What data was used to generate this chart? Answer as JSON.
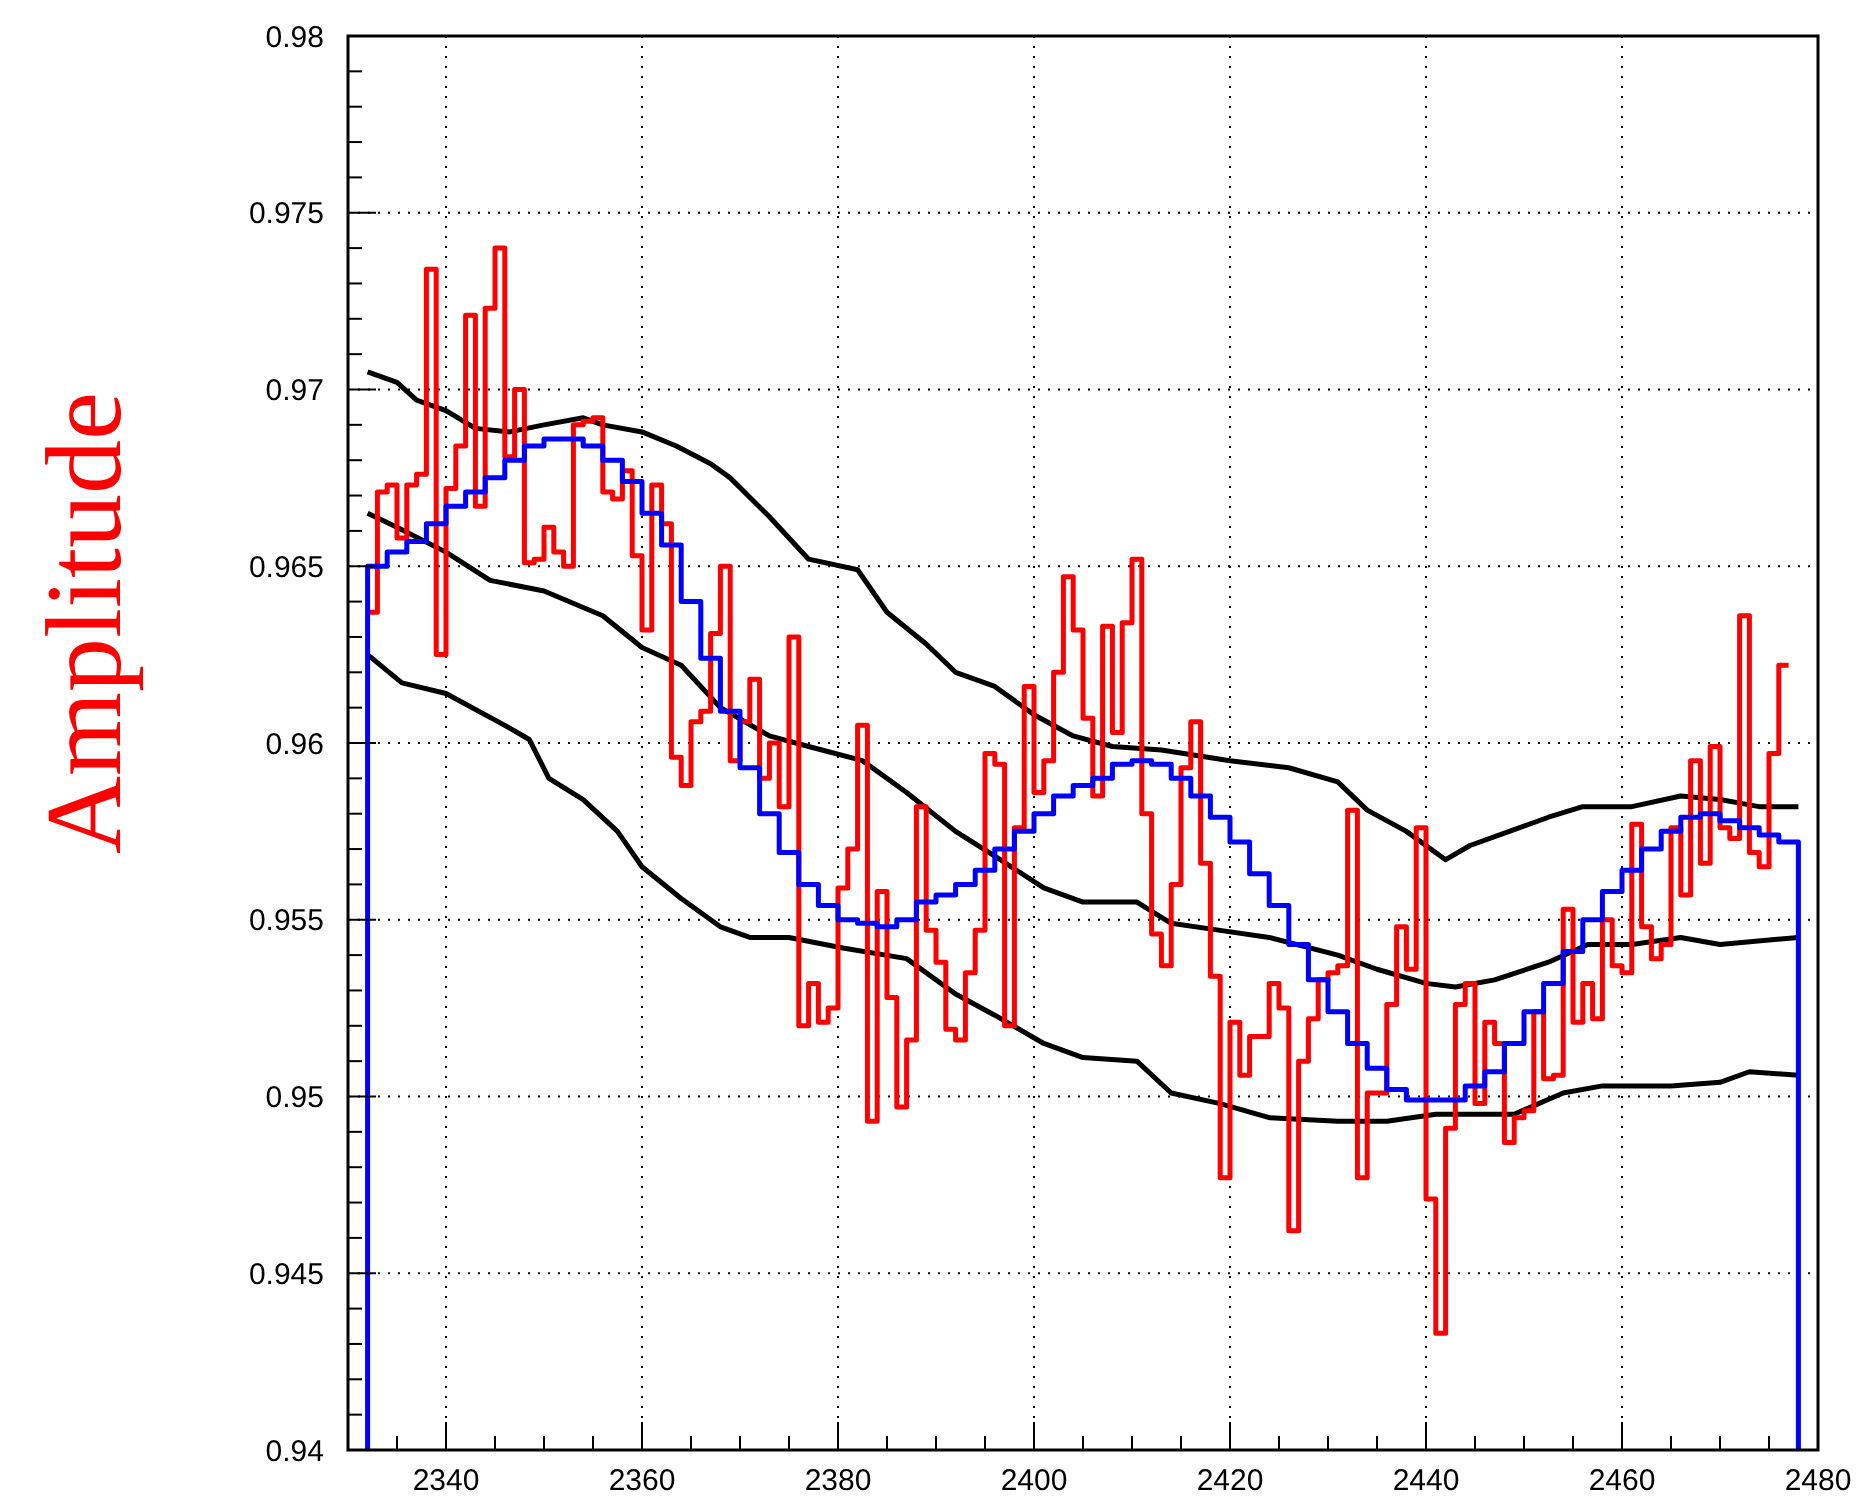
{
  "chart_data": {
    "type": "step",
    "ylabel": "Amplitude",
    "xlim": [
      2330,
      2480
    ],
    "ylim": [
      0.94,
      0.98
    ],
    "xticks": [
      {
        "value": 2335,
        "label": null
      },
      2340,
      {
        "value": 2345,
        "label": null
      },
      {
        "value": 2350,
        "label": null
      },
      {
        "value": 2355,
        "label": null
      },
      2360,
      {
        "value": 2365,
        "label": null
      },
      {
        "value": 2370,
        "label": null
      },
      {
        "value": 2375,
        "label": null
      },
      2380,
      {
        "value": 2385,
        "label": null
      },
      {
        "value": 2390,
        "label": null
      },
      {
        "value": 2395,
        "label": null
      },
      2400,
      {
        "value": 2405,
        "label": null
      },
      {
        "value": 2410,
        "label": null
      },
      {
        "value": 2415,
        "label": null
      },
      2420,
      {
        "value": 2425,
        "label": null
      },
      {
        "value": 2430,
        "label": null
      },
      {
        "value": 2435,
        "label": null
      },
      2440,
      {
        "value": 2445,
        "label": null
      },
      {
        "value": 2450,
        "label": null
      },
      {
        "value": 2455,
        "label": null
      },
      2460,
      {
        "value": 2465,
        "label": null
      },
      {
        "value": 2470,
        "label": null
      },
      {
        "value": 2475,
        "label": null
      },
      2480
    ],
    "yticks": [
      0.94,
      {
        "value": 0.941,
        "label": null
      },
      {
        "value": 0.942,
        "label": null
      },
      {
        "value": 0.943,
        "label": null
      },
      {
        "value": 0.944,
        "label": null
      },
      0.945,
      {
        "value": 0.946,
        "label": null
      },
      {
        "value": 0.947,
        "label": null
      },
      {
        "value": 0.948,
        "label": null
      },
      {
        "value": 0.949,
        "label": null
      },
      0.95,
      {
        "value": 0.951,
        "label": null
      },
      {
        "value": 0.952,
        "label": null
      },
      {
        "value": 0.953,
        "label": null
      },
      {
        "value": 0.954,
        "label": null
      },
      0.955,
      {
        "value": 0.956,
        "label": null
      },
      {
        "value": 0.957,
        "label": null
      },
      {
        "value": 0.958,
        "label": null
      },
      {
        "value": 0.959,
        "label": null
      },
      0.96,
      {
        "value": 0.961,
        "label": null
      },
      {
        "value": 0.962,
        "label": null
      },
      {
        "value": 0.963,
        "label": null
      },
      {
        "value": 0.964,
        "label": null
      },
      0.965,
      {
        "value": 0.966,
        "label": null
      },
      {
        "value": 0.967,
        "label": null
      },
      {
        "value": 0.968,
        "label": null
      },
      {
        "value": 0.969,
        "label": null
      },
      0.97,
      {
        "value": 0.971,
        "label": null
      },
      {
        "value": 0.972,
        "label": null
      },
      {
        "value": 0.973,
        "label": null
      },
      {
        "value": 0.974,
        "label": null
      },
      0.975,
      {
        "value": 0.976,
        "label": null
      },
      {
        "value": 0.977,
        "label": null
      },
      {
        "value": 0.978,
        "label": null
      },
      {
        "value": 0.979,
        "label": null
      },
      0.98
    ],
    "grid": true,
    "series": [
      {
        "type": "line",
        "color": "#000000",
        "x": [
          2332,
          2335,
          2337,
          2340,
          2343,
          2346.5,
          2350,
          2354,
          2356,
          2360,
          2363.5,
          2367,
          2369,
          2373,
          2377,
          2382,
          2385,
          2389,
          2392,
          2396,
          2400,
          2404,
          2408,
          2413,
          2420,
          2426,
          2431,
          2434,
          2438,
          2442,
          2444.5,
          2448.5,
          2452.5,
          2456,
          2461,
          2466,
          2470,
          2474,
          2478
        ],
        "values": [
          0.9705,
          0.9702,
          0.9697,
          0.9694,
          0.9689,
          0.9688,
          0.969,
          0.9692,
          0.969,
          0.9688,
          0.9684,
          0.9679,
          0.9675,
          0.9664,
          0.9652,
          0.9649,
          0.9637,
          0.9628,
          0.962,
          0.9616,
          0.9608,
          0.9602,
          0.9599,
          0.9598,
          0.9595,
          0.9593,
          0.9589,
          0.9581,
          0.9575,
          0.9567,
          0.9571,
          0.9575,
          0.9579,
          0.9582,
          0.9582,
          0.9585,
          0.9584,
          0.9582,
          0.9582
        ]
      },
      {
        "type": "line",
        "color": "#000000",
        "x": [
          2332,
          2335,
          2340,
          2344.5,
          2350,
          2356,
          2360,
          2364,
          2368,
          2373,
          2377,
          2382.5,
          2387,
          2392,
          2396,
          2401,
          2405,
          2410.5,
          2414,
          2419,
          2424,
          2431,
          2435,
          2440,
          2443,
          2447,
          2452.5,
          2456.5,
          2461,
          2466,
          2470,
          2478
        ],
        "values": [
          0.9665,
          0.9661,
          0.9654,
          0.9646,
          0.9643,
          0.9636,
          0.9627,
          0.9622,
          0.961,
          0.9602,
          0.9599,
          0.9595,
          0.9586,
          0.9575,
          0.9568,
          0.9559,
          0.9555,
          0.9555,
          0.9549,
          0.9547,
          0.9545,
          0.954,
          0.9536,
          0.9532,
          0.9531,
          0.9533,
          0.9538,
          0.9543,
          0.9543,
          0.9545,
          0.9543,
          0.9545
        ]
      },
      {
        "type": "line",
        "color": "#000000",
        "x": [
          2332,
          2335.5,
          2340,
          2346,
          2348.5,
          2350.5,
          2354,
          2357.5,
          2360,
          2364,
          2368,
          2371,
          2375,
          2380.5,
          2387,
          2392,
          2396,
          2401,
          2405,
          2410.5,
          2414,
          2419,
          2424,
          2431,
          2436,
          2441,
          2449,
          2454,
          2458,
          2465,
          2470,
          2473,
          2478
        ],
        "values": [
          0.9625,
          0.9617,
          0.9614,
          0.9605,
          0.9601,
          0.959,
          0.9584,
          0.9575,
          0.9565,
          0.9556,
          0.9548,
          0.9545,
          0.9545,
          0.9542,
          0.9539,
          0.9529,
          0.9523,
          0.9515,
          0.9511,
          0.951,
          0.9501,
          0.9498,
          0.9494,
          0.9493,
          0.9493,
          0.9495,
          0.9495,
          0.9501,
          0.9503,
          0.9503,
          0.9504,
          0.9507,
          0.9506
        ]
      },
      {
        "color": "#ff0000",
        "x": [
          2332,
          2333,
          2334,
          2335,
          2336,
          2337,
          2338,
          2339,
          2340,
          2341,
          2342,
          2343,
          2344,
          2345,
          2346,
          2347,
          2348,
          2349,
          2350,
          2351,
          2352,
          2353,
          2354,
          2355,
          2356,
          2357,
          2358,
          2359,
          2360,
          2361,
          2362,
          2363,
          2364,
          2365,
          2366,
          2367,
          2368,
          2369,
          2370,
          2371,
          2372,
          2373,
          2374,
          2375,
          2376,
          2377,
          2378,
          2379,
          2380,
          2381,
          2382,
          2383,
          2384,
          2385,
          2386,
          2387,
          2388,
          2389,
          2390,
          2391,
          2392,
          2393,
          2394,
          2395,
          2396,
          2397,
          2398,
          2399,
          2400,
          2401,
          2402,
          2403,
          2404,
          2405,
          2406,
          2407,
          2408,
          2409,
          2410,
          2411,
          2412,
          2413,
          2414,
          2415,
          2416,
          2417,
          2418,
          2419,
          2420,
          2421,
          2422,
          2423,
          2424,
          2425,
          2426,
          2427,
          2428,
          2429,
          2430,
          2431,
          2432,
          2433,
          2434,
          2435,
          2436,
          2437,
          2438,
          2439,
          2440,
          2441,
          2442,
          2443,
          2444,
          2445,
          2446,
          2447,
          2448,
          2449,
          2450,
          2451,
          2452,
          2453,
          2454,
          2455,
          2456,
          2457,
          2458,
          2459,
          2460,
          2461,
          2462,
          2463,
          2464,
          2465,
          2466,
          2467,
          2468,
          2469,
          2470,
          2471,
          2472,
          2473,
          2474,
          2475,
          2476,
          2477
        ],
        "values": [
          0.9637,
          0.9671,
          0.9673,
          0.9658,
          0.9673,
          0.9676,
          0.9734,
          0.9625,
          0.9672,
          0.9684,
          0.9721,
          0.9667,
          0.9723,
          0.974,
          0.9681,
          0.97,
          0.9651,
          0.9652,
          0.9661,
          0.9654,
          0.965,
          0.969,
          0.9691,
          0.9692,
          0.9671,
          0.9669,
          0.9677,
          0.9653,
          0.9632,
          0.9673,
          0.9662,
          0.9596,
          0.9588,
          0.9606,
          0.9609,
          0.9631,
          0.965,
          0.9595,
          0.9606,
          0.9618,
          0.959,
          0.96,
          0.9582,
          0.963,
          0.952,
          0.9532,
          0.9521,
          0.9525,
          0.9559,
          0.957,
          0.9605,
          0.9493,
          0.9558,
          0.9528,
          0.9497,
          0.9516,
          0.9582,
          0.9547,
          0.9538,
          0.9519,
          0.9516,
          0.9535,
          0.9547,
          0.9597,
          0.9594,
          0.952,
          0.9576,
          0.9616,
          0.9586,
          0.9595,
          0.962,
          0.9647,
          0.9632,
          0.9607,
          0.9585,
          0.9633,
          0.9603,
          0.9634,
          0.9652,
          0.958,
          0.9546,
          0.9537,
          0.956,
          0.9593,
          0.9606,
          0.9566,
          0.9534,
          0.9477,
          0.9521,
          0.9506,
          0.9517,
          0.9517,
          0.9532,
          0.9525,
          0.9462,
          0.951,
          0.9522,
          0.9533,
          0.9535,
          0.9537,
          0.9581,
          0.9477,
          0.9501,
          0.9501,
          0.9526,
          0.9548,
          0.9536,
          0.9576,
          0.9471,
          0.9433,
          0.9491,
          0.9526,
          0.9532,
          0.9498,
          0.9521,
          0.9515,
          0.9487,
          0.9494,
          0.9496,
          0.9524,
          0.9505,
          0.9506,
          0.9553,
          0.9521,
          0.9532,
          0.9522,
          0.955,
          0.9537,
          0.9535,
          0.9577,
          0.9548,
          0.9539,
          0.9543,
          0.9576,
          0.9557,
          0.9595,
          0.9566,
          0.9599,
          0.9576,
          0.9573,
          0.9636,
          0.9569,
          0.9565,
          0.9597,
          0.9622,
          0.9622
        ]
      },
      {
        "color": "#0000ff",
        "x": [
          2332,
          2332,
          2334,
          2336,
          2338,
          2340,
          2342,
          2344,
          2346,
          2348,
          2350,
          2352,
          2354,
          2356,
          2358,
          2360,
          2362,
          2364,
          2366,
          2368,
          2370,
          2372,
          2374,
          2376,
          2378,
          2380,
          2382,
          2384,
          2386,
          2388,
          2390,
          2392,
          2394,
          2396,
          2398,
          2400,
          2402,
          2404,
          2406,
          2408,
          2410,
          2412,
          2414,
          2416,
          2418,
          2420,
          2422,
          2424,
          2426,
          2428,
          2430,
          2432,
          2434,
          2436,
          2438,
          2440,
          2442,
          2444,
          2446,
          2448,
          2450,
          2452,
          2454,
          2456,
          2458,
          2460,
          2462,
          2464,
          2466,
          2468,
          2470,
          2472,
          2474,
          2476,
          2478,
          2478
        ],
        "values": [
          0.94,
          0.965,
          0.9654,
          0.9657,
          0.9662,
          0.9667,
          0.9671,
          0.9675,
          0.968,
          0.9684,
          0.9686,
          0.9686,
          0.9684,
          0.968,
          0.9674,
          0.9665,
          0.9656,
          0.964,
          0.9624,
          0.9609,
          0.9593,
          0.958,
          0.9569,
          0.956,
          0.9554,
          0.955,
          0.9549,
          0.9548,
          0.955,
          0.9555,
          0.9557,
          0.956,
          0.9564,
          0.957,
          0.9575,
          0.958,
          0.9585,
          0.9588,
          0.959,
          0.9594,
          0.9595,
          0.9594,
          0.959,
          0.9585,
          0.9579,
          0.9572,
          0.9563,
          0.9554,
          0.9543,
          0.9533,
          0.9524,
          0.9515,
          0.9508,
          0.9502,
          0.9499,
          0.9499,
          0.9499,
          0.9503,
          0.9507,
          0.9515,
          0.9524,
          0.9532,
          0.9541,
          0.955,
          0.9558,
          0.9564,
          0.957,
          0.9575,
          0.9579,
          0.958,
          0.9578,
          0.9576,
          0.9574,
          0.9572,
          0.9572,
          0.94
        ]
      }
    ]
  }
}
